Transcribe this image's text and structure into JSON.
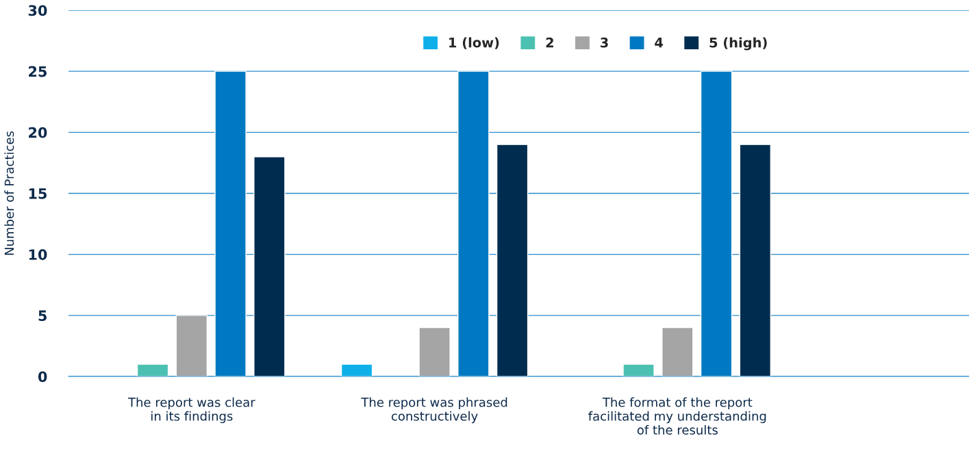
{
  "chart_data": {
    "type": "bar",
    "ylabel": "Number of Practices",
    "categories": [
      "The report was clear\nin its findings",
      "The report was phrased\nconstructively",
      "The format of the report\nfacilitated my understanding\nof the results"
    ],
    "series": [
      {
        "name": "1 (low)",
        "color": "#0fb0ea",
        "values": [
          null,
          1,
          null
        ]
      },
      {
        "name": "2",
        "color": "#4dc1b1",
        "values": [
          1,
          null,
          1
        ]
      },
      {
        "name": "3",
        "color": "#a5a5a5",
        "values": [
          5,
          4,
          4
        ]
      },
      {
        "name": "4",
        "color": "#0079c2",
        "values": [
          25,
          25,
          25
        ]
      },
      {
        "name": "5 (high)",
        "color": "#002d4f",
        "values": [
          18,
          19,
          19
        ]
      }
    ],
    "ylim": [
      0,
      30
    ],
    "yticks": [
      0,
      5,
      10,
      15,
      20,
      25,
      30
    ],
    "grid": "y",
    "legend": "top right"
  }
}
